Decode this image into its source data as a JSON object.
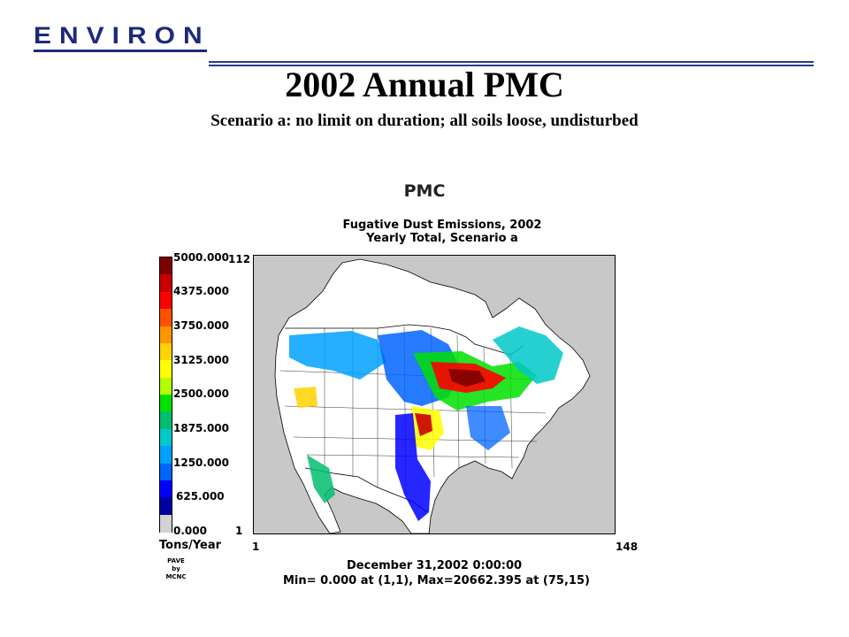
{
  "header": {
    "logo_text": "ENVIRON",
    "title": "2002 Annual PMC",
    "subtitle": "Scenario a: no limit on duration; all soils loose, undisturbed",
    "colors": {
      "logo": "#1c2a7c",
      "rule": "#2a3a8c"
    }
  },
  "plot": {
    "species_label": "PMC",
    "title_line1": "Fugative Dust Emissions, 2002",
    "title_line2": "Yearly Total, Scenario a",
    "grid_y_max": "112",
    "grid_y_min": "1",
    "grid_x_min": "1",
    "grid_x_max": "148",
    "date": "December 31,2002 0:00:00",
    "minmax": "Min=   0.000 at (1,1), Max=20662.395 at (75,15)"
  },
  "legend": {
    "units": "Tons/Year",
    "ticks": [
      "5000.000",
      "4375.000",
      "3750.000",
      "3125.000",
      "2500.000",
      "1875.000",
      "1250.000",
      "625.000",
      "0.000"
    ],
    "colors": [
      "#800000",
      "#c80000",
      "#ff0000",
      "#ff5000",
      "#ff9600",
      "#ffd200",
      "#ffff00",
      "#b4ff00",
      "#00e100",
      "#00be6e",
      "#00c8c8",
      "#00a0ff",
      "#0064ff",
      "#0000ff",
      "#0000a0",
      "#d2d2d2"
    ],
    "pave_line1": "PAVE",
    "pave_line2": "by",
    "pave_line3": "MCNC"
  }
}
